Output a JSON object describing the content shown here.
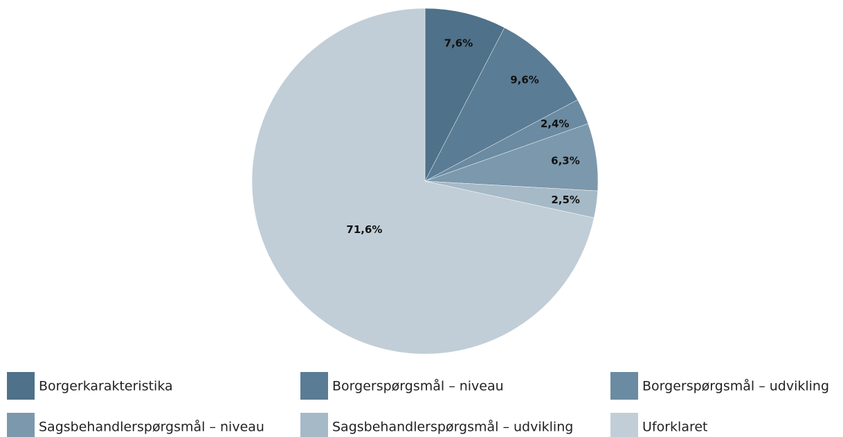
{
  "chart_data": {
    "type": "pie",
    "categories": [
      "Borgerkarakteristika",
      "Borgerspørgsmål – niveau",
      "Borgerspørgsmål – udvikling",
      "Sagsbehandlerspørgsmål – niveau",
      "Sagsbehandlerspørgsmål – udvikling",
      "Uforklaret"
    ],
    "values": [
      7.6,
      9.6,
      2.4,
      6.3,
      2.5,
      71.6
    ],
    "value_labels": [
      "7,6%",
      "9,6%",
      "2,4%",
      "6,3%",
      "2,5%",
      "71,6%"
    ],
    "colors": [
      "#4f7189",
      "#5b7c95",
      "#6a8ba1",
      "#7c98ac",
      "#a6b9c6",
      "#c1ced7"
    ],
    "legend": "bottom"
  }
}
